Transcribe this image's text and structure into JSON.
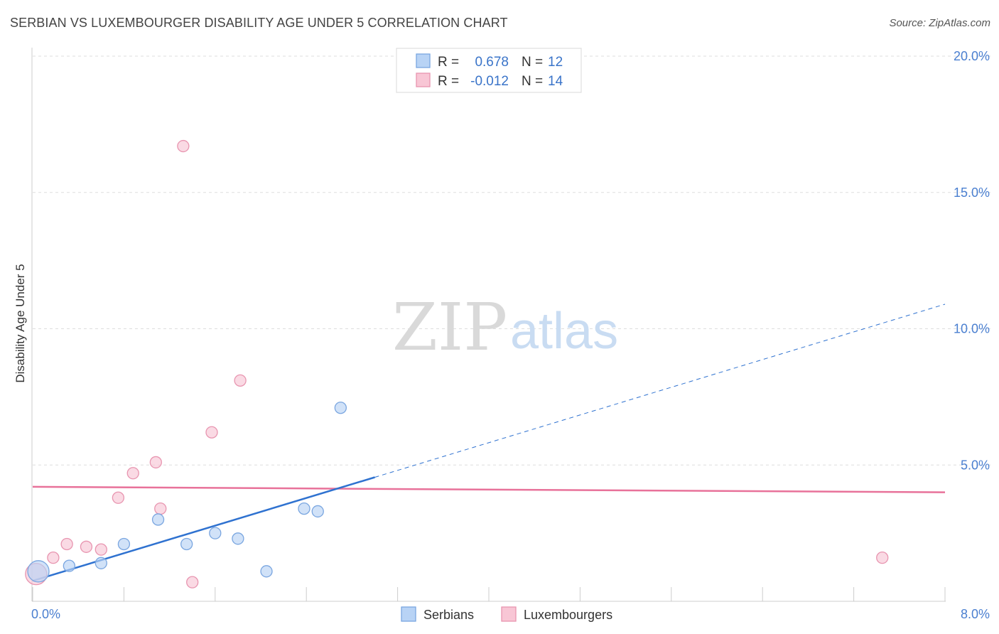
{
  "title": "SERBIAN VS LUXEMBOURGER DISABILITY AGE UNDER 5 CORRELATION CHART",
  "source": "Source: ZipAtlas.com",
  "watermark": {
    "part1": "ZIP",
    "part2": "atlas"
  },
  "colors": {
    "serbians_fill": "#b8d3f5",
    "serbians_stroke": "#7aa6e0",
    "serbians_line": "#2f72d0",
    "luxembourgers_fill": "#f8c6d5",
    "luxembourgers_stroke": "#e895b0",
    "luxembourgers_line": "#e8729a",
    "tick_text": "#4a7fd0",
    "grid": "#dddddd"
  },
  "legend": {
    "rows": [
      {
        "r_label": "R =",
        "r_value": "0.678",
        "n_label": "N =",
        "n_value": "12"
      },
      {
        "r_label": "R =",
        "r_value": "-0.012",
        "n_label": "N =",
        "n_value": "14"
      }
    ]
  },
  "bottom_legend": {
    "serbians": "Serbians",
    "luxembourgers": "Luxembourgers"
  },
  "chart_data": {
    "type": "scatter",
    "title": "SERBIAN VS LUXEMBOURGER DISABILITY AGE UNDER 5 CORRELATION CHART",
    "xlabel": "",
    "ylabel": "Disability Age Under 5",
    "xlim": [
      0,
      8
    ],
    "ylim": [
      0,
      20
    ],
    "x_tick_labels": [
      "0.0%",
      "8.0%"
    ],
    "y_ticks": [
      5,
      10,
      15,
      20
    ],
    "y_tick_labels": [
      "5.0%",
      "10.0%",
      "15.0%",
      "20.0%"
    ],
    "grid": true,
    "series": [
      {
        "name": "Serbians",
        "r": 0.678,
        "n": 12,
        "points": [
          {
            "x": 0.05,
            "y": 1.1,
            "big": true
          },
          {
            "x": 0.32,
            "y": 1.3
          },
          {
            "x": 0.6,
            "y": 1.4
          },
          {
            "x": 0.8,
            "y": 2.1
          },
          {
            "x": 1.1,
            "y": 3.0
          },
          {
            "x": 1.35,
            "y": 2.1
          },
          {
            "x": 1.6,
            "y": 2.5
          },
          {
            "x": 1.8,
            "y": 2.3
          },
          {
            "x": 2.05,
            "y": 1.1
          },
          {
            "x": 2.38,
            "y": 3.4
          },
          {
            "x": 2.5,
            "y": 3.3
          },
          {
            "x": 2.7,
            "y": 7.1
          }
        ],
        "trend": {
          "x_start": 0.0,
          "y_start": 0.75,
          "x_solid_end": 3.0,
          "y_solid_end": 4.55,
          "x_end": 8.0,
          "y_end": 10.9
        }
      },
      {
        "name": "Luxembourgers",
        "r": -0.012,
        "n": 14,
        "points": [
          {
            "x": 0.03,
            "y": 1.0,
            "big": true
          },
          {
            "x": 0.18,
            "y": 1.6
          },
          {
            "x": 0.3,
            "y": 2.1
          },
          {
            "x": 0.47,
            "y": 2.0
          },
          {
            "x": 0.6,
            "y": 1.9
          },
          {
            "x": 0.75,
            "y": 3.8
          },
          {
            "x": 0.88,
            "y": 4.7
          },
          {
            "x": 1.08,
            "y": 5.1
          },
          {
            "x": 1.12,
            "y": 3.4
          },
          {
            "x": 1.32,
            "y": 16.7
          },
          {
            "x": 1.4,
            "y": 0.7
          },
          {
            "x": 1.57,
            "y": 6.2
          },
          {
            "x": 1.82,
            "y": 8.1
          },
          {
            "x": 7.45,
            "y": 1.6
          }
        ],
        "trend": {
          "x_start": 0.0,
          "y_start": 4.2,
          "x_end": 8.0,
          "y_end": 4.0
        }
      }
    ]
  }
}
